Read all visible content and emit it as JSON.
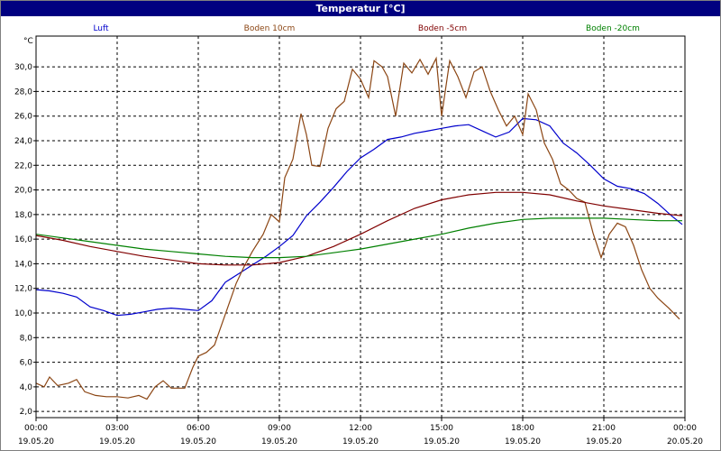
{
  "window": {
    "title": "Temperatur [°C]"
  },
  "colors": {
    "titlebar": "#000080",
    "grid": "#000000"
  },
  "chart_data": {
    "type": "line",
    "title": "Temperatur [°C]",
    "ylabel": "°C",
    "xlabel": "",
    "ylim": [
      1.5,
      32.5
    ],
    "y_ticks": [
      "2,0",
      "4,0",
      "6,0",
      "8,0",
      "10,0",
      "12,0",
      "14,0",
      "16,0",
      "18,0",
      "20,0",
      "22,0",
      "24,0",
      "26,0",
      "28,0",
      "30,0"
    ],
    "y_tick_values": [
      2,
      4,
      6,
      8,
      10,
      12,
      14,
      16,
      18,
      20,
      22,
      24,
      26,
      28,
      30
    ],
    "xlim": [
      0,
      24
    ],
    "x_ticks": [
      {
        "x": 0,
        "time": "00:00",
        "date": "19.05.20"
      },
      {
        "x": 3,
        "time": "03:00",
        "date": "19.05.20"
      },
      {
        "x": 6,
        "time": "06:00",
        "date": "19.05.20"
      },
      {
        "x": 9,
        "time": "09:00",
        "date": "19.05.20"
      },
      {
        "x": 12,
        "time": "12:00",
        "date": "19.05.20"
      },
      {
        "x": 15,
        "time": "15:00",
        "date": "19.05.20"
      },
      {
        "x": 18,
        "time": "18:00",
        "date": "19.05.20"
      },
      {
        "x": 21,
        "time": "21:00",
        "date": "19.05.20"
      },
      {
        "x": 24,
        "time": "00:00",
        "date": "20.05.20"
      }
    ],
    "grid": true,
    "legend_position": "top",
    "series": [
      {
        "name": "Luft",
        "color": "#0000cc",
        "points": [
          [
            0,
            11.9
          ],
          [
            0.5,
            11.8
          ],
          [
            1,
            11.6
          ],
          [
            1.5,
            11.3
          ],
          [
            2,
            10.5
          ],
          [
            2.5,
            10.2
          ],
          [
            3,
            9.8
          ],
          [
            3.5,
            9.9
          ],
          [
            4,
            10.1
          ],
          [
            4.5,
            10.3
          ],
          [
            5,
            10.4
          ],
          [
            5.5,
            10.3
          ],
          [
            6,
            10.2
          ],
          [
            6.5,
            11.0
          ],
          [
            7,
            12.5
          ],
          [
            7.5,
            13.2
          ],
          [
            8,
            13.9
          ],
          [
            8.5,
            14.6
          ],
          [
            9,
            15.4
          ],
          [
            9.5,
            16.3
          ],
          [
            10,
            17.9
          ],
          [
            10.5,
            19.0
          ],
          [
            11,
            20.2
          ],
          [
            11.5,
            21.5
          ],
          [
            12,
            22.6
          ],
          [
            12.5,
            23.3
          ],
          [
            13,
            24.1
          ],
          [
            13.5,
            24.3
          ],
          [
            14,
            24.6
          ],
          [
            14.5,
            24.8
          ],
          [
            15,
            25.0
          ],
          [
            15.5,
            25.2
          ],
          [
            16,
            25.3
          ],
          [
            16.5,
            24.8
          ],
          [
            17,
            24.3
          ],
          [
            17.5,
            24.7
          ],
          [
            18,
            25.8
          ],
          [
            18.5,
            25.7
          ],
          [
            19,
            25.2
          ],
          [
            19.5,
            23.8
          ],
          [
            20,
            23.0
          ],
          [
            20.5,
            22.0
          ],
          [
            21,
            20.9
          ],
          [
            21.5,
            20.3
          ],
          [
            22,
            20.1
          ],
          [
            22.5,
            19.7
          ],
          [
            23,
            18.9
          ],
          [
            23.5,
            17.9
          ],
          [
            23.9,
            17.2
          ]
        ]
      },
      {
        "name": "Boden 10cm",
        "color": "#8b4513",
        "points": [
          [
            0,
            4.3
          ],
          [
            0.3,
            4.0
          ],
          [
            0.5,
            4.8
          ],
          [
            0.8,
            4.1
          ],
          [
            1.2,
            4.3
          ],
          [
            1.5,
            4.6
          ],
          [
            1.8,
            3.6
          ],
          [
            2.2,
            3.3
          ],
          [
            2.6,
            3.2
          ],
          [
            3,
            3.2
          ],
          [
            3.4,
            3.1
          ],
          [
            3.8,
            3.3
          ],
          [
            4.1,
            3.0
          ],
          [
            4.4,
            4.0
          ],
          [
            4.7,
            4.5
          ],
          [
            5,
            3.9
          ],
          [
            5.5,
            3.9
          ],
          [
            5.8,
            5.6
          ],
          [
            6,
            6.5
          ],
          [
            6.3,
            6.8
          ],
          [
            6.6,
            7.4
          ],
          [
            7,
            9.9
          ],
          [
            7.4,
            12.4
          ],
          [
            7.7,
            13.8
          ],
          [
            8,
            15.0
          ],
          [
            8.4,
            16.4
          ],
          [
            8.7,
            18.0
          ],
          [
            9,
            17.4
          ],
          [
            9.2,
            21.0
          ],
          [
            9.5,
            22.5
          ],
          [
            9.8,
            26.2
          ],
          [
            10,
            24.5
          ],
          [
            10.2,
            22.0
          ],
          [
            10.5,
            21.9
          ],
          [
            10.8,
            25.0
          ],
          [
            11.1,
            26.6
          ],
          [
            11.4,
            27.2
          ],
          [
            11.7,
            29.8
          ],
          [
            12,
            29.0
          ],
          [
            12.3,
            27.5
          ],
          [
            12.5,
            30.5
          ],
          [
            12.8,
            30.0
          ],
          [
            13.0,
            29.2
          ],
          [
            13.3,
            26.0
          ],
          [
            13.6,
            30.3
          ],
          [
            13.9,
            29.5
          ],
          [
            14.2,
            30.6
          ],
          [
            14.5,
            29.4
          ],
          [
            14.8,
            30.7
          ],
          [
            15,
            26.0
          ],
          [
            15.3,
            30.5
          ],
          [
            15.6,
            29.2
          ],
          [
            15.9,
            27.5
          ],
          [
            16.2,
            29.6
          ],
          [
            16.5,
            30.0
          ],
          [
            16.8,
            28.0
          ],
          [
            17.1,
            26.5
          ],
          [
            17.4,
            25.2
          ],
          [
            17.7,
            26.0
          ],
          [
            18,
            24.5
          ],
          [
            18.2,
            27.8
          ],
          [
            18.5,
            26.5
          ],
          [
            18.8,
            23.8
          ],
          [
            19.1,
            22.5
          ],
          [
            19.4,
            20.5
          ],
          [
            19.7,
            20.0
          ],
          [
            20,
            19.3
          ],
          [
            20.3,
            19.0
          ],
          [
            20.6,
            16.5
          ],
          [
            20.9,
            14.5
          ],
          [
            21.2,
            16.4
          ],
          [
            21.5,
            17.3
          ],
          [
            21.8,
            17.0
          ],
          [
            22.1,
            15.5
          ],
          [
            22.4,
            13.5
          ],
          [
            22.7,
            12.0
          ],
          [
            23,
            11.2
          ],
          [
            23.4,
            10.4
          ],
          [
            23.8,
            9.5
          ]
        ]
      },
      {
        "name": "Boden -5cm",
        "color": "#800000",
        "points": [
          [
            0,
            16.3
          ],
          [
            1,
            15.9
          ],
          [
            2,
            15.4
          ],
          [
            3,
            15.0
          ],
          [
            4,
            14.6
          ],
          [
            5,
            14.3
          ],
          [
            6,
            14.0
          ],
          [
            7,
            13.9
          ],
          [
            8,
            13.9
          ],
          [
            9,
            14.1
          ],
          [
            10,
            14.6
          ],
          [
            11,
            15.4
          ],
          [
            12,
            16.4
          ],
          [
            13,
            17.5
          ],
          [
            14,
            18.5
          ],
          [
            15,
            19.2
          ],
          [
            16,
            19.6
          ],
          [
            17,
            19.8
          ],
          [
            18,
            19.8
          ],
          [
            19,
            19.6
          ],
          [
            20,
            19.1
          ],
          [
            21,
            18.7
          ],
          [
            22,
            18.4
          ],
          [
            23,
            18.1
          ],
          [
            23.9,
            17.9
          ]
        ]
      },
      {
        "name": "Boden -20cm",
        "color": "#008000",
        "points": [
          [
            0,
            16.4
          ],
          [
            1,
            16.1
          ],
          [
            2,
            15.8
          ],
          [
            3,
            15.5
          ],
          [
            4,
            15.2
          ],
          [
            5,
            15.0
          ],
          [
            6,
            14.8
          ],
          [
            7,
            14.6
          ],
          [
            8,
            14.5
          ],
          [
            9,
            14.5
          ],
          [
            10,
            14.6
          ],
          [
            11,
            14.9
          ],
          [
            12,
            15.2
          ],
          [
            13,
            15.6
          ],
          [
            14,
            16.0
          ],
          [
            15,
            16.4
          ],
          [
            16,
            16.9
          ],
          [
            17,
            17.3
          ],
          [
            18,
            17.6
          ],
          [
            19,
            17.7
          ],
          [
            20,
            17.7
          ],
          [
            21,
            17.7
          ],
          [
            22,
            17.6
          ],
          [
            23,
            17.5
          ],
          [
            23.9,
            17.5
          ]
        ]
      }
    ]
  }
}
